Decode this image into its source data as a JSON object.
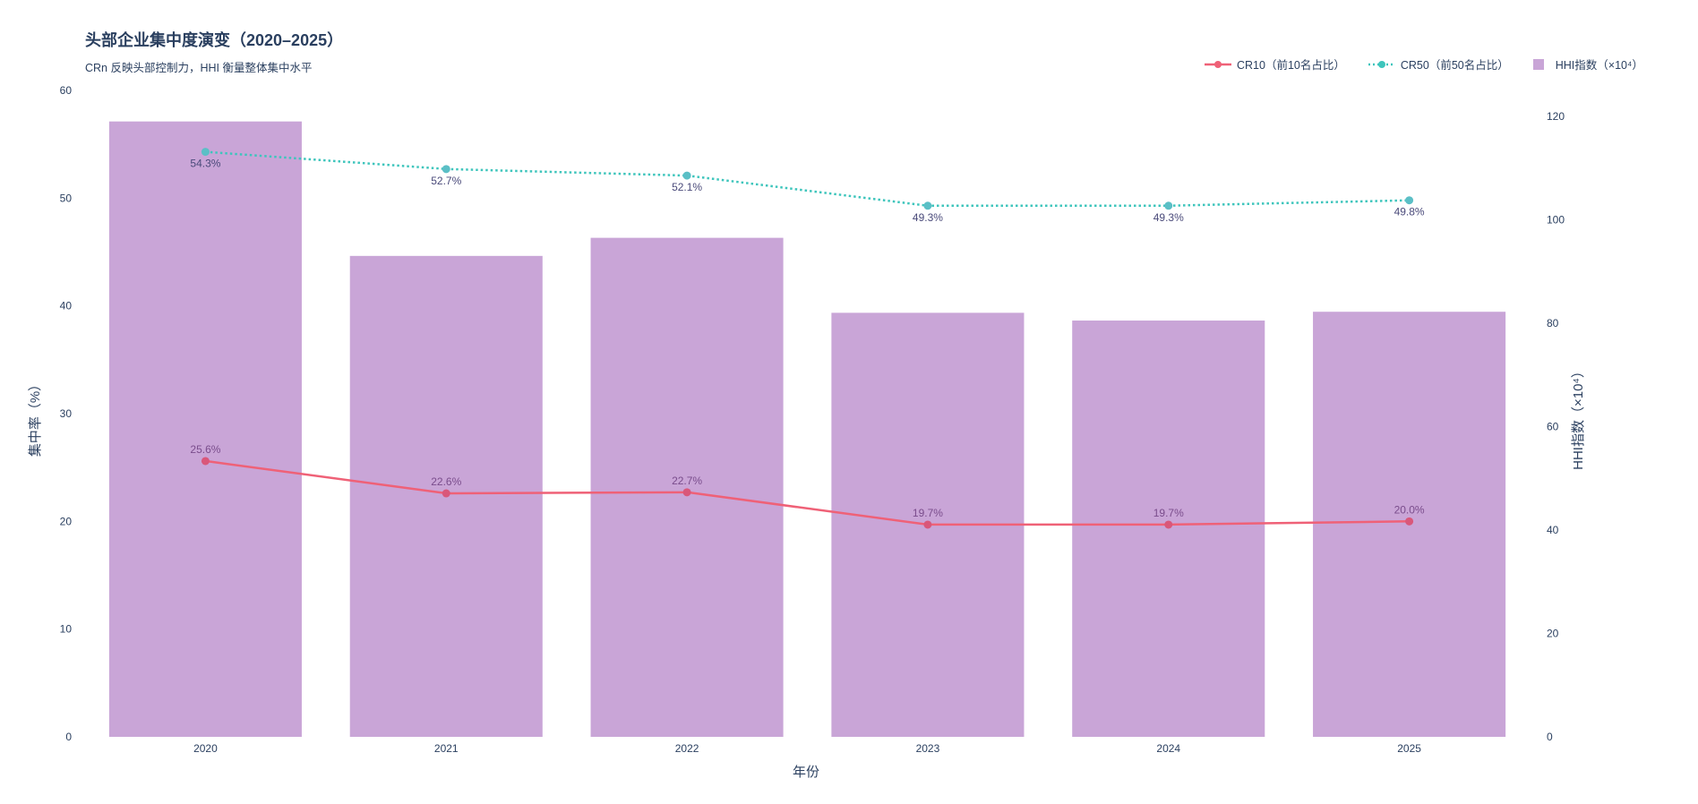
{
  "chart_data": {
    "type": "bar",
    "title": "头部企业集中度演变（2020–2025）",
    "subtitle": "CRn 反映头部控制力，HHI 衡量整体集中水平",
    "xlabel": "年份",
    "ylabel": "集中率（%）",
    "y2label": "HHI指数（×10⁴）",
    "categories": [
      "2020",
      "2021",
      "2022",
      "2023",
      "2024",
      "2025"
    ],
    "ylim": [
      0,
      60
    ],
    "y2lim": [
      0,
      125
    ],
    "yticks": [
      "0",
      "10",
      "20",
      "30",
      "40",
      "50",
      "60"
    ],
    "y2ticks": [
      "0",
      "20",
      "40",
      "60",
      "80",
      "100",
      "120"
    ],
    "legend_position": "top-right",
    "grid": false,
    "series": [
      {
        "name": "CR10（前10名占比）",
        "kind": "line",
        "axis": "y",
        "style": "solid",
        "color": "#ef6177",
        "values": [
          25.6,
          22.6,
          22.7,
          19.7,
          19.7,
          20.0
        ],
        "labels": [
          "25.6%",
          "22.6%",
          "22.7%",
          "19.7%",
          "19.7%",
          "20.0%"
        ]
      },
      {
        "name": "CR50（前50名占比）",
        "kind": "line",
        "axis": "y",
        "style": "dotted",
        "color": "#3ec5bc",
        "values": [
          54.3,
          52.7,
          52.1,
          49.3,
          49.3,
          49.8
        ],
        "labels": [
          "54.3%",
          "52.7%",
          "52.1%",
          "49.3%",
          "49.3%",
          "49.8%"
        ]
      },
      {
        "name": "HHI指数（×10⁴）",
        "kind": "bar",
        "axis": "y2",
        "color": "#c9a5d7",
        "values": [
          119,
          93,
          96.5,
          82,
          80.5,
          82.2
        ]
      }
    ]
  }
}
